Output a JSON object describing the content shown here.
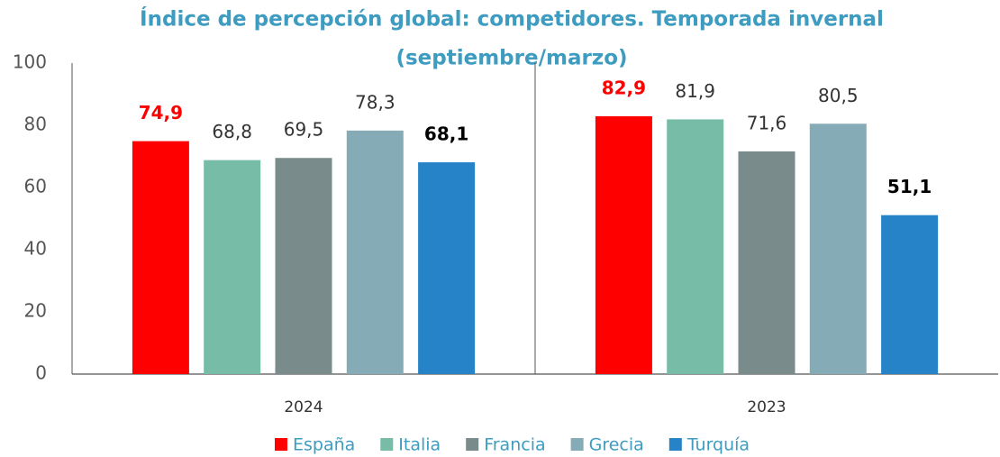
{
  "chart_data": {
    "type": "bar",
    "title": [
      "Índice de percepción global: competidores. Temporada invernal",
      "(septiembre/marzo)"
    ],
    "categories": [
      "2024",
      "2023"
    ],
    "series": [
      {
        "name": "España",
        "color": "#ff0000",
        "label_color": "#ff0000",
        "label_bold": true,
        "values": [
          74.9,
          82.9
        ],
        "value_labels": [
          "74,9",
          "82,9"
        ]
      },
      {
        "name": "Italia",
        "color": "#76bca6",
        "label_color": "#333333",
        "label_bold": false,
        "values": [
          68.8,
          81.9
        ],
        "value_labels": [
          "68,8",
          "81,9"
        ]
      },
      {
        "name": "Francia",
        "color": "#7a8b8b",
        "label_color": "#333333",
        "label_bold": false,
        "values": [
          69.5,
          71.6
        ],
        "value_labels": [
          "69,5",
          "71,6"
        ]
      },
      {
        "name": "Grecia",
        "color": "#85abb6",
        "label_color": "#333333",
        "label_bold": false,
        "values": [
          78.3,
          80.5
        ],
        "value_labels": [
          "78,3",
          "80,5"
        ]
      },
      {
        "name": "Turquía",
        "color": "#2783c8",
        "label_color": "#000000",
        "label_bold": true,
        "values": [
          68.1,
          51.1
        ],
        "value_labels": [
          "68,1",
          "51,1"
        ]
      }
    ],
    "ylim": [
      0,
      100
    ],
    "yticks": [
      0,
      20,
      40,
      60,
      80,
      100
    ],
    "grid": false,
    "legend": "bottom"
  }
}
